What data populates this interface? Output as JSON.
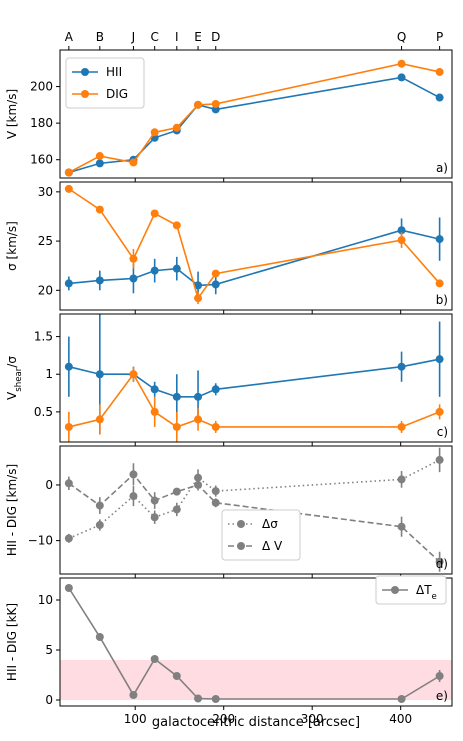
{
  "chart_data": {
    "type": "multi-panel",
    "xlabel": "galactocentric distance [arcsec]",
    "xlim": [
      15,
      458
    ],
    "xticks": [
      100,
      200,
      300,
      400
    ],
    "top_labels": [
      {
        "name": "A",
        "x": 25
      },
      {
        "name": "B",
        "x": 60
      },
      {
        "name": "J",
        "x": 98
      },
      {
        "name": "C",
        "x": 122
      },
      {
        "name": "I",
        "x": 147
      },
      {
        "name": "E",
        "x": 171
      },
      {
        "name": "D",
        "x": 191
      },
      {
        "name": "Q",
        "x": 401
      },
      {
        "name": "P",
        "x": 444
      }
    ],
    "colors": {
      "hii": "#1f77b4",
      "dig": "#ff7f0e",
      "gray": "#808080",
      "band": "#ffc0cb"
    },
    "panels": [
      {
        "ylabel": "V [km/s]",
        "ylim": [
          150,
          220
        ],
        "yticks": [
          160,
          180,
          200
        ],
        "tag": "a)",
        "legend": [
          "HII",
          "DIG"
        ],
        "series": [
          {
            "name": "HII",
            "color": "#1f77b4",
            "style": "solid",
            "x": [
              25,
              60,
              98,
              122,
              147,
              171,
              191,
              401,
              444
            ],
            "y": [
              153,
              158,
              160,
              172,
              176,
              190,
              187.5,
              205,
              194
            ]
          },
          {
            "name": "DIG",
            "color": "#ff7f0e",
            "style": "solid",
            "x": [
              25,
              60,
              98,
              122,
              147,
              171,
              191,
              401,
              444
            ],
            "y": [
              153,
              162,
              158.5,
              175,
              177.5,
              190,
              190.5,
              212.5,
              208
            ]
          }
        ]
      },
      {
        "ylabel": "σ [km/s]",
        "ylim": [
          18,
          31
        ],
        "yticks": [
          20,
          25,
          30
        ],
        "tag": "b)",
        "series": [
          {
            "name": "HII",
            "color": "#1f77b4",
            "style": "solid",
            "x": [
              25,
              60,
              98,
              122,
              147,
              171,
              191,
              401,
              444
            ],
            "y": [
              20.7,
              21.0,
              21.2,
              22.0,
              22.2,
              20.5,
              20.6,
              26.1,
              25.2
            ],
            "err": [
              0.7,
              1.0,
              1.5,
              1.2,
              1.2,
              1.4,
              1.0,
              1.2,
              2.2
            ]
          },
          {
            "name": "DIG",
            "color": "#ff7f0e",
            "style": "solid",
            "x": [
              25,
              60,
              98,
              122,
              147,
              171,
              191,
              401,
              444
            ],
            "y": [
              30.3,
              28.2,
              23.2,
              27.8,
              26.6,
              19.2,
              21.7,
              25.1,
              20.7
            ],
            "err": [
              0.3,
              0.3,
              1.0,
              0.3,
              0.3,
              0.6,
              0.3,
              0.8,
              0.3
            ]
          }
        ]
      },
      {
        "ylabel": "V_shear/σ",
        "ylim": [
          0.1,
          1.8
        ],
        "yticks": [
          0.5,
          1.0,
          1.5
        ],
        "tag": "c)",
        "series": [
          {
            "name": "HII",
            "color": "#1f77b4",
            "style": "solid",
            "x": [
              25,
              60,
              98,
              122,
              147,
              171,
              191,
              401,
              444
            ],
            "y": [
              1.1,
              1.0,
              1.0,
              0.8,
              0.7,
              0.7,
              0.8,
              1.1,
              1.2
            ],
            "err": [
              0.4,
              0.8,
              0.1,
              0.1,
              0.3,
              0.35,
              0.08,
              0.2,
              0.5
            ]
          },
          {
            "name": "DIG",
            "color": "#ff7f0e",
            "style": "solid",
            "x": [
              25,
              60,
              98,
              122,
              147,
              171,
              191,
              401,
              444
            ],
            "y": [
              0.3,
              0.4,
              1.0,
              0.5,
              0.3,
              0.4,
              0.3,
              0.3,
              0.5
            ],
            "err": [
              0.2,
              0.2,
              0.1,
              0.2,
              0.2,
              0.15,
              0.08,
              0.08,
              0.1
            ]
          }
        ]
      },
      {
        "ylabel": "HII - DIG [km/s]",
        "ylim": [
          -16,
          7
        ],
        "yticks": [
          -10,
          0
        ],
        "tag": "d)",
        "legend": [
          "Δσ",
          "Δ V"
        ],
        "series": [
          {
            "name": "Δσ",
            "color": "#808080",
            "style": "dotted",
            "x": [
              25,
              60,
              98,
              122,
              147,
              171,
              191,
              401,
              444
            ],
            "y": [
              -9.6,
              -7.2,
              -2.0,
              -5.8,
              -4.4,
              1.3,
              -1.1,
              1.0,
              4.5
            ],
            "err": [
              0.8,
              1.0,
              1.8,
              1.2,
              1.2,
              1.5,
              1.0,
              1.5,
              2.2
            ]
          },
          {
            "name": "Δ V",
            "color": "#808080",
            "style": "dashed",
            "x": [
              25,
              60,
              98,
              122,
              147,
              171,
              191,
              401,
              444
            ],
            "y": [
              0.3,
              -3.7,
              1.9,
              -2.8,
              -1.2,
              0.0,
              -3.2,
              -7.5,
              -13.8
            ],
            "err": [
              1.2,
              1.5,
              2.0,
              1.5,
              0.6,
              1.0,
              0.8,
              1.8,
              1.8
            ]
          }
        ]
      },
      {
        "ylabel": "HII - DIG [kK]",
        "ylim": [
          -0.6,
          12.2
        ],
        "yticks": [
          0,
          5,
          10
        ],
        "tag": "e)",
        "legend": [
          "ΔT_e"
        ],
        "band": [
          0,
          4
        ],
        "series": [
          {
            "name": "ΔT_e",
            "color": "#808080",
            "style": "solid",
            "x": [
              25,
              60,
              98,
              122,
              147,
              171,
              191,
              401,
              444
            ],
            "y": [
              11.2,
              6.3,
              0.5,
              4.1,
              2.4,
              0.15,
              0.1,
              0.1,
              2.4
            ],
            "err": [
              0.2,
              0.2,
              0.15,
              0.2,
              0.2,
              0.1,
              0.1,
              0.1,
              0.6
            ]
          }
        ]
      }
    ]
  }
}
